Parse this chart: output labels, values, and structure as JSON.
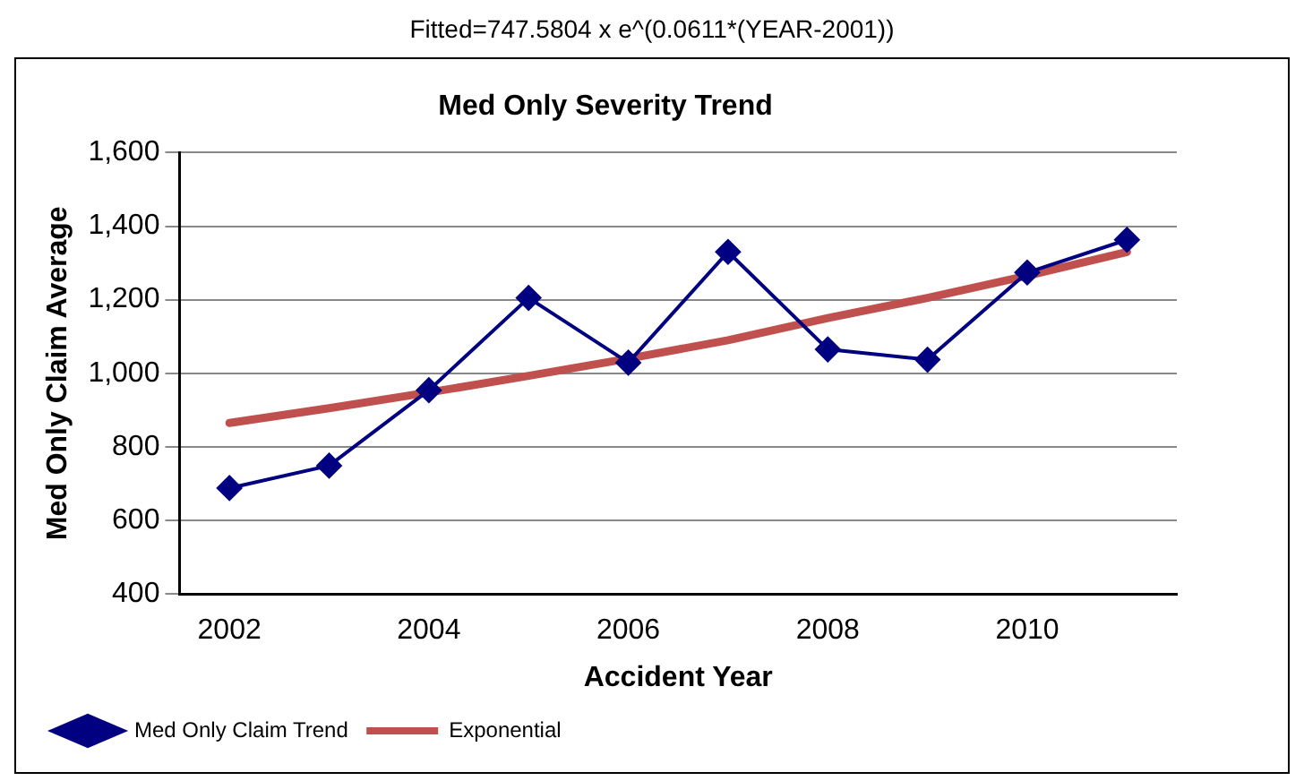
{
  "chart_data": {
    "type": "line",
    "title": "Med Only Severity Trend",
    "annotations": [
      "Fitted=747.5804 x e^(0.0611*(YEAR-2001))"
    ],
    "xlabel": "Accident Year",
    "ylabel": "Med Only Claim Average",
    "categories": [
      "2002",
      null,
      "2004",
      null,
      "2006",
      null,
      "2008",
      null,
      "2010",
      null
    ],
    "series": [
      {
        "name": "Med Only Claim Trend",
        "color": "#000080",
        "marker": "diamond",
        "values": [
          688,
          749,
          954,
          1205,
          1029,
          1330,
          1065,
          1037,
          1274,
          1363
        ]
      },
      {
        "name": "Exponential",
        "color": "#c0504d",
        "marker": "none",
        "values": [
          865,
          905,
          948,
          993,
          1040,
          1090,
          1150,
          1205,
          1265,
          1330
        ]
      }
    ],
    "ylim": [
      400,
      1600
    ],
    "yticks": [
      400,
      600,
      800,
      {
        "value": 1000,
        "label": "1,000"
      },
      {
        "value": 1200,
        "label": "1,200"
      },
      {
        "value": 1400,
        "label": "1,400"
      },
      {
        "value": 1600,
        "label": "1,600"
      }
    ],
    "grid": "y",
    "legend": "bottom left"
  }
}
